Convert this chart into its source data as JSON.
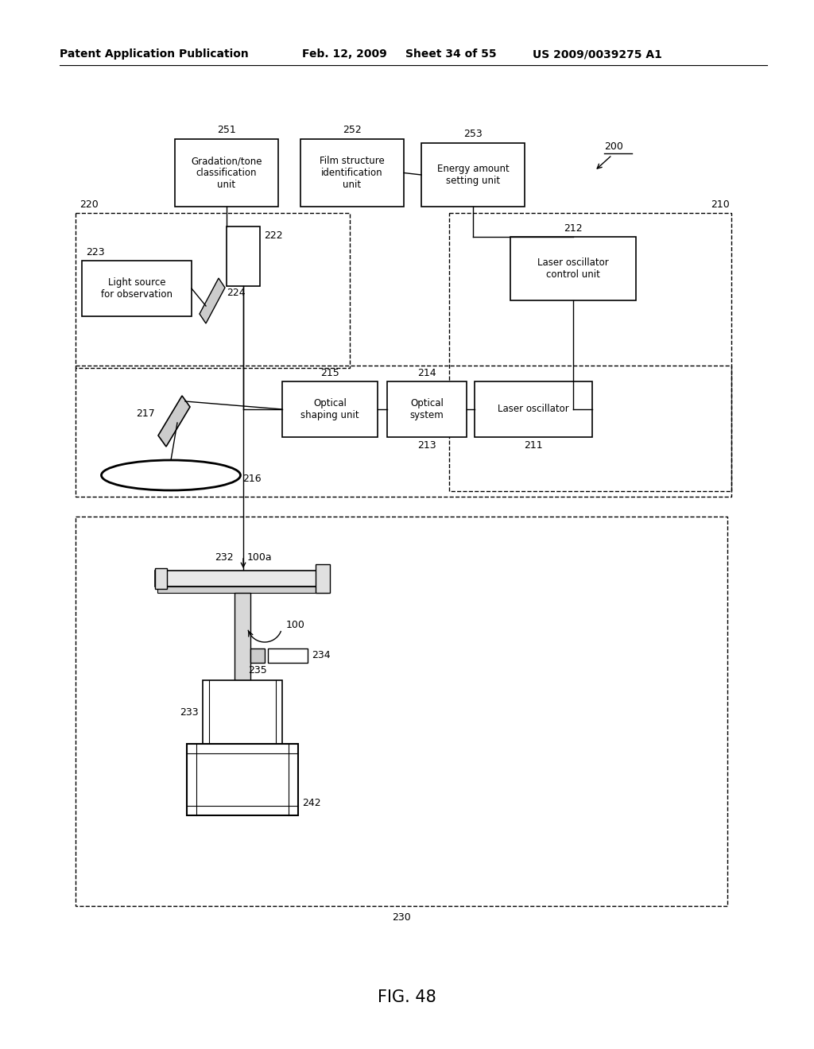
{
  "bg_color": "#ffffff",
  "header_left": "Patent Application Publication",
  "header_date": "Feb. 12, 2009",
  "header_sheet": "Sheet 34 of 55",
  "header_patent": "US 2009/0039275 A1",
  "figure_label": "FIG. 48"
}
